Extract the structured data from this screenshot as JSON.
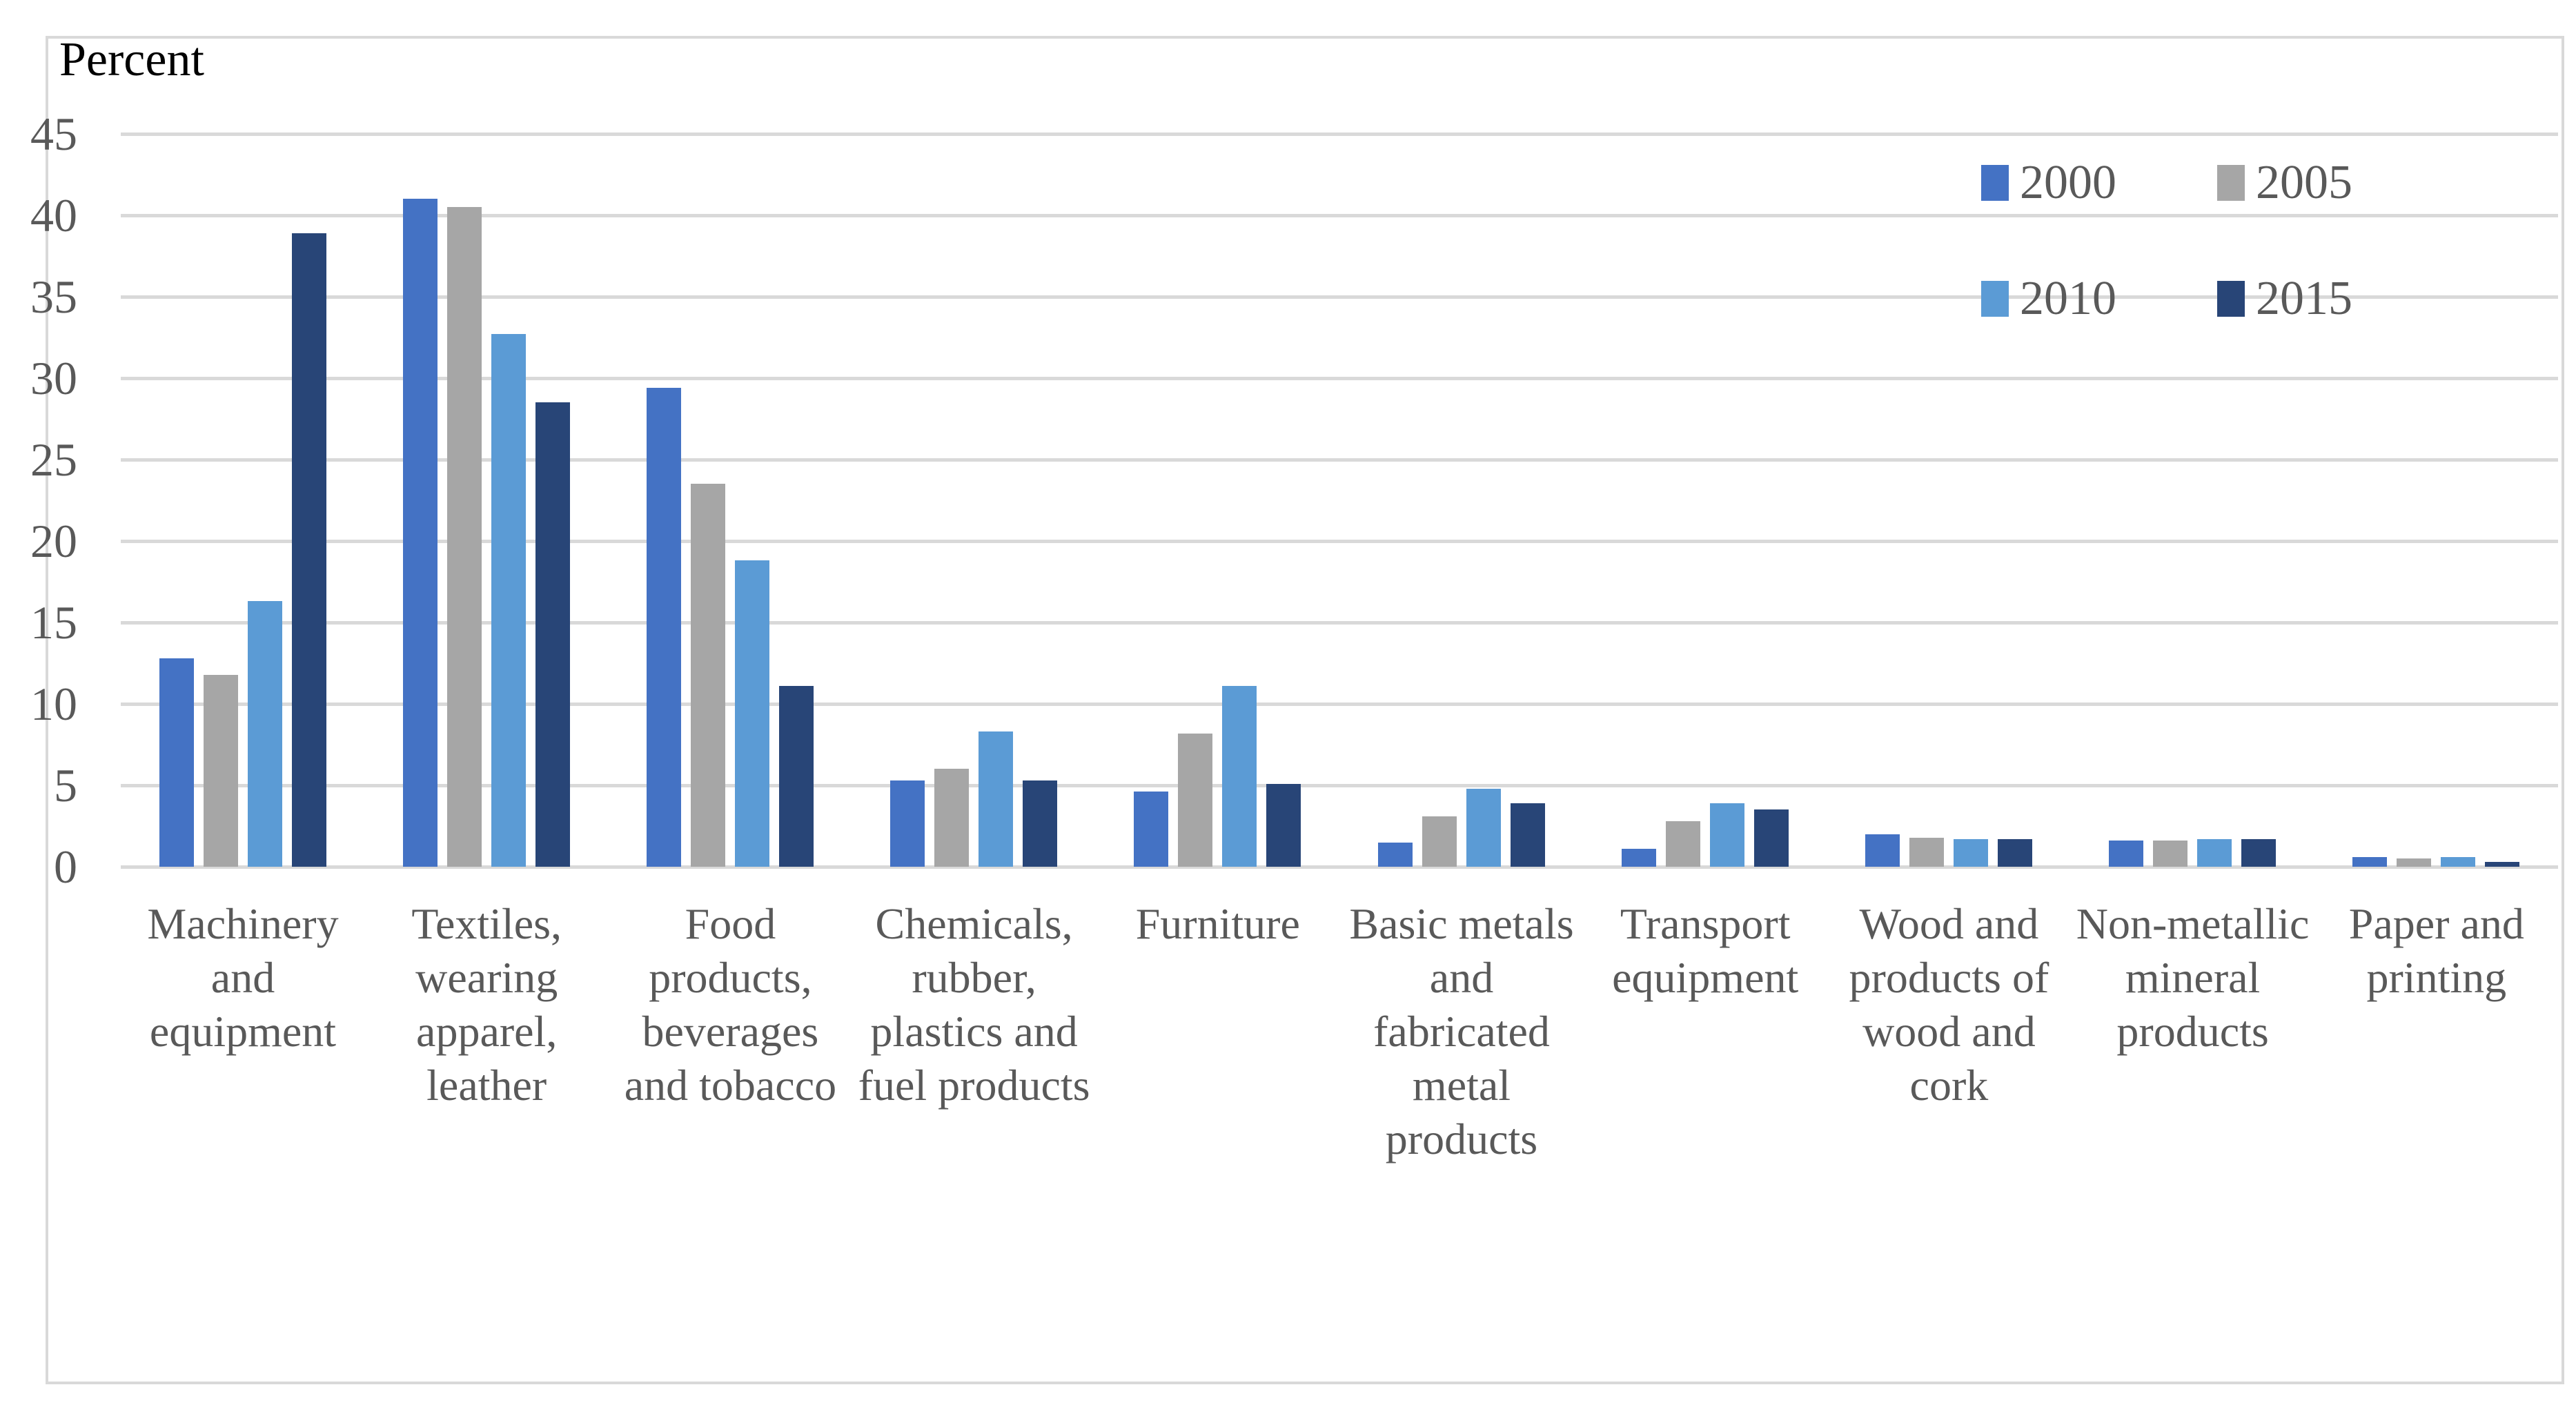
{
  "chart_data": {
    "type": "bar",
    "axis_title": "Percent",
    "categories": [
      "Machinery and equipment",
      "Textiles, wearing apparel, leather",
      "Food products, beverages and tobacco",
      "Chemicals, rubber, plastics and fuel products",
      "Furniture",
      "Basic metals and fabricated metal products",
      "Transport equipment",
      "Wood and products of wood and cork",
      "Non-metallic mineral products",
      "Paper and printing"
    ],
    "categories_display": [
      "Machinery\nand\nequipment",
      "Textiles,\nwearing\napparel,\nleather",
      "Food\nproducts,\nbeverages\nand tobacco",
      "Chemicals,\nrubber,\nplastics and\nfuel products",
      "Furniture",
      "Basic metals\nand\nfabricated\nmetal\nproducts",
      "Transport\nequipment",
      "Wood and\nproducts of\nwood and\ncork",
      "Non-metallic\nmineral\nproducts",
      "Paper and\nprinting"
    ],
    "series": [
      {
        "name": "2000",
        "color": "#4472C4",
        "values": [
          12.8,
          41.0,
          29.4,
          5.3,
          4.6,
          1.5,
          1.1,
          2.0,
          1.6,
          0.6
        ]
      },
      {
        "name": "2005",
        "color": "#A6A6A6",
        "values": [
          11.8,
          40.5,
          23.5,
          6.0,
          8.2,
          3.1,
          2.8,
          1.8,
          1.6,
          0.5
        ]
      },
      {
        "name": "2010",
        "color": "#5B9BD5",
        "values": [
          16.3,
          32.7,
          18.8,
          8.3,
          11.1,
          4.8,
          3.9,
          1.7,
          1.7,
          0.6
        ]
      },
      {
        "name": "2015",
        "color": "#284577",
        "values": [
          38.9,
          28.5,
          11.1,
          5.3,
          5.1,
          3.9,
          3.5,
          1.7,
          1.7,
          0.3
        ]
      }
    ],
    "ylim": [
      0,
      45
    ],
    "yticks": [
      0,
      5,
      10,
      15,
      20,
      25,
      30,
      35,
      40,
      45
    ],
    "grid": true,
    "legend_position": "top-right",
    "legend_rows": [
      [
        "2000",
        "2005"
      ],
      [
        "2010",
        "2015"
      ]
    ]
  },
  "colors": {
    "gridline": "#D9D9D9",
    "frame_border": "#D9D9D9",
    "axis_text": "#595959",
    "title_text": "#000000",
    "background": "#FFFFFF"
  }
}
